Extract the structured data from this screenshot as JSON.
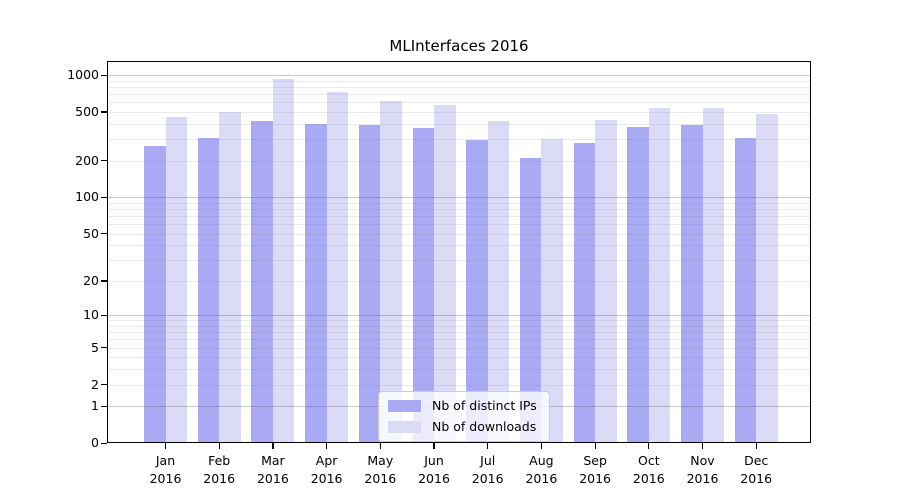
{
  "title": "MLInterfaces 2016",
  "colors": {
    "distinct_ips_bar": "#a9a9f4",
    "downloads_bar": "#dbdbf8",
    "plot_border": "#000000",
    "gridline_major": "#c8c8c8",
    "gridline_minor": "#ebebeb",
    "background": "#ffffff"
  },
  "chart_data": {
    "type": "bar",
    "title": "MLInterfaces 2016",
    "xlabel": "",
    "ylabel": "",
    "yscale": "log1p",
    "ylim": [
      0,
      1000
    ],
    "grid": true,
    "legend_position": "bottom-center",
    "yticks": [
      1000,
      500,
      200,
      100,
      50,
      20,
      10,
      5,
      2,
      1,
      0
    ],
    "categories": [
      "Jan",
      "Feb",
      "Mar",
      "Apr",
      "May",
      "Jun",
      "Jul",
      "Aug",
      "Sep",
      "Oct",
      "Nov",
      "Dec"
    ],
    "x_year": "2016",
    "series": [
      {
        "name": "Nb of distinct IPs",
        "color": "#a9a9f4",
        "values": [
          264,
          305,
          418,
          400,
          393,
          368,
          295,
          211,
          281,
          373,
          393,
          308
        ]
      },
      {
        "name": "Nb of downloads",
        "color": "#dbdbf8",
        "values": [
          452,
          500,
          934,
          726,
          616,
          566,
          424,
          303,
          427,
          537,
          542,
          480
        ]
      }
    ]
  }
}
